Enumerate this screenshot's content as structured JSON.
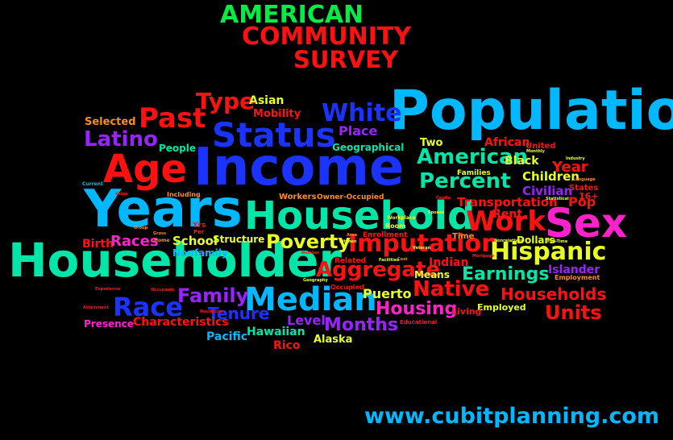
{
  "title": {
    "line1": "AMERICAN",
    "line2": "COMMUNITY",
    "line3": "SURVEY"
  },
  "footer": {
    "url": "www.cubitplanning.com"
  },
  "colors": {
    "background": "#000000",
    "green": "#00ee44",
    "red": "#ff1111",
    "cyan": "#00b8ff",
    "blue": "#1a33ff",
    "teal": "#00e6a8",
    "magenta": "#ff22cc",
    "purple": "#9922ff",
    "yellow": "#e8ff22",
    "orange": "#ff8c1a"
  },
  "words": [
    "Population",
    "Income",
    "Years",
    "Householder",
    "Household",
    "Age",
    "Status",
    "Sex",
    "Median",
    "Imputation",
    "Race",
    "Past",
    "White",
    "Latino",
    "Type",
    "Asian",
    "Mobility",
    "Selected",
    "People",
    "Place",
    "Geographical",
    "American",
    "Percent",
    "Work",
    "Hispanic",
    "Aggregate",
    "Native",
    "Earnings",
    "Poverty",
    "Family",
    "Tenure",
    "Months",
    "Housing",
    "Households",
    "Units",
    "Puerto",
    "Rico",
    "Hawaiian",
    "Pacific",
    "Alaska",
    "Level",
    "Characteristics",
    "Presence",
    "Birth",
    "Races",
    "School",
    "Structure",
    "Nonfamily",
    "Children",
    "Civilian",
    "Transportation",
    "Rent",
    "Dollars",
    "Islander",
    "Indian",
    "Means",
    "Employed",
    "Living",
    "Black",
    "African",
    "United",
    "Two",
    "Year",
    "Pop",
    "States",
    "16+",
    "Workers",
    "Owner-Occupied",
    "Enrollment",
    "Time",
    "Related",
    "Occupied",
    "Educational",
    "Families",
    "Including",
    "Employment",
    "Yrs",
    "Per",
    "Room",
    "Workplace",
    "Home",
    "Current",
    "Geography",
    "Residence",
    "Attainment",
    "Experience",
    "Occupants",
    "Nonrelatives",
    "Veteran",
    "Language",
    "Industry",
    "Mortgage",
    "Value",
    "Group",
    "Full-Time",
    "Capita",
    "Statistical",
    "Monthly",
    "Spouse",
    "Gross",
    "Area",
    "Cost",
    "Facilities",
    "Number",
    "Kitchen"
  ]
}
